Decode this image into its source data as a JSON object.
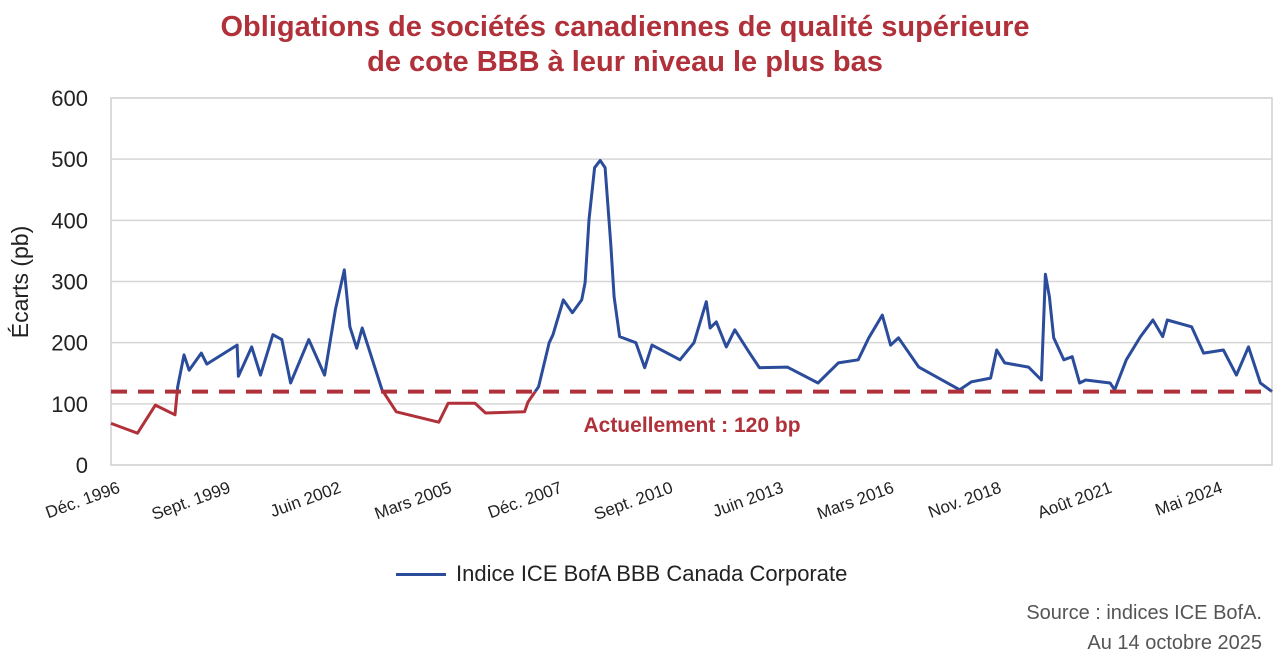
{
  "chart_data": {
    "type": "line",
    "title": "Obligations de sociétés canadiennes de qualité supérieure de cote BBB à leur niveau le plus bas",
    "title_lines": [
      "Obligations de sociétés canadiennes de qualité supérieure",
      "de cote BBB à leur niveau le plus bas"
    ],
    "ylabel": "Écarts (pb)",
    "xlabel": "",
    "ylim": [
      0,
      600
    ],
    "yticks": [
      0,
      100,
      200,
      300,
      400,
      500,
      600
    ],
    "xlim": [
      "1996-12-01",
      "2025-10-14"
    ],
    "xticks": [
      {
        "date": "1996-12-01",
        "label": "Déc. 1996"
      },
      {
        "date": "1999-09-01",
        "label": "Sept. 1999"
      },
      {
        "date": "2002-06-01",
        "label": "Juin 2002"
      },
      {
        "date": "2005-03-01",
        "label": "Mars 2005"
      },
      {
        "date": "2007-12-01",
        "label": "Déc. 2007"
      },
      {
        "date": "2010-09-01",
        "label": "Sept. 2010"
      },
      {
        "date": "2013-06-01",
        "label": "Juin 2013"
      },
      {
        "date": "2016-03-01",
        "label": "Mars 2016"
      },
      {
        "date": "2018-11-01",
        "label": "Nov. 2018"
      },
      {
        "date": "2021-08-01",
        "label": "Août 2021"
      },
      {
        "date": "2024-05-01",
        "label": "Mai 2024"
      }
    ],
    "grid": true,
    "legend_placement": "bottom",
    "series": [
      {
        "name": "Indice ICE BofA BBB Canada Corporate",
        "color": "#2b4c9b",
        "below_reference_color": "#b0313a",
        "points": [
          [
            "1996-12-01",
            68
          ],
          [
            "1997-07-30",
            52
          ],
          [
            "1998-01-08",
            98
          ],
          [
            "1998-07-05",
            82
          ],
          [
            "1998-07-30",
            128
          ],
          [
            "1998-09-25",
            180
          ],
          [
            "1998-11-10",
            155
          ],
          [
            "1999-03-01",
            183
          ],
          [
            "1999-04-20",
            165
          ],
          [
            "2000-01-20",
            196
          ],
          [
            "2000-02-01",
            145
          ],
          [
            "2000-06-01",
            193
          ],
          [
            "2000-08-20",
            147
          ],
          [
            "2000-12-10",
            213
          ],
          [
            "2001-03-01",
            205
          ],
          [
            "2001-05-20",
            134
          ],
          [
            "2001-11-01",
            205
          ],
          [
            "2002-03-25",
            147
          ],
          [
            "2002-07-01",
            254
          ],
          [
            "2002-09-20",
            319
          ],
          [
            "2002-11-10",
            226
          ],
          [
            "2003-01-10",
            191
          ],
          [
            "2003-03-01",
            224
          ],
          [
            "2003-08-28",
            123
          ],
          [
            "2004-01-05",
            87
          ],
          [
            "2005-01-25",
            70
          ],
          [
            "2005-04-20",
            101
          ],
          [
            "2005-12-20",
            101
          ],
          [
            "2006-03-25",
            85
          ],
          [
            "2007-03-15",
            87
          ],
          [
            "2007-04-15",
            103
          ],
          [
            "2007-07-20",
            128
          ],
          [
            "2007-10-25",
            200
          ],
          [
            "2007-11-28",
            213
          ],
          [
            "2008-03-01",
            270
          ],
          [
            "2008-05-22",
            249
          ],
          [
            "2008-08-15",
            270
          ],
          [
            "2008-09-15",
            298
          ],
          [
            "2008-10-20",
            401
          ],
          [
            "2008-12-10",
            486
          ],
          [
            "2009-01-30",
            498
          ],
          [
            "2009-03-15",
            486
          ],
          [
            "2009-05-05",
            363
          ],
          [
            "2009-06-05",
            275
          ],
          [
            "2009-07-25",
            210
          ],
          [
            "2009-12-20",
            200
          ],
          [
            "2010-03-10",
            159
          ],
          [
            "2010-05-15",
            196
          ],
          [
            "2011-01-25",
            172
          ],
          [
            "2011-06-01",
            200
          ],
          [
            "2011-09-20",
            267
          ],
          [
            "2011-10-25",
            224
          ],
          [
            "2011-12-20",
            234
          ],
          [
            "2012-03-20",
            193
          ],
          [
            "2012-06-05",
            221
          ],
          [
            "2012-10-10",
            185
          ],
          [
            "2013-01-15",
            159
          ],
          [
            "2013-09-25",
            160
          ],
          [
            "2014-07-01",
            134
          ],
          [
            "2015-01-01",
            167
          ],
          [
            "2015-07-01",
            172
          ],
          [
            "2015-10-05",
            208
          ],
          [
            "2016-02-05",
            245
          ],
          [
            "2016-04-20",
            196
          ],
          [
            "2016-07-01",
            208
          ],
          [
            "2017-01-01",
            160
          ],
          [
            "2017-06-01",
            145
          ],
          [
            "2018-01-08",
            123
          ],
          [
            "2018-04-25",
            136
          ],
          [
            "2018-10-15",
            142
          ],
          [
            "2018-12-10",
            188
          ],
          [
            "2019-02-20",
            167
          ],
          [
            "2019-09-25",
            160
          ],
          [
            "2020-01-20",
            139
          ],
          [
            "2020-02-25",
            312
          ],
          [
            "2020-04-01",
            275
          ],
          [
            "2020-05-10",
            208
          ],
          [
            "2020-08-10",
            172
          ],
          [
            "2020-10-25",
            177
          ],
          [
            "2021-01-01",
            134
          ],
          [
            "2021-02-25",
            139
          ],
          [
            "2021-10-05",
            134
          ],
          [
            "2021-11-15",
            123
          ],
          [
            "2022-03-01",
            172
          ],
          [
            "2022-07-08",
            210
          ],
          [
            "2022-10-28",
            237
          ],
          [
            "2023-01-25",
            210
          ],
          [
            "2023-03-08",
            237
          ],
          [
            "2023-10-15",
            226
          ],
          [
            "2024-02-01",
            183
          ],
          [
            "2024-07-30",
            188
          ],
          [
            "2024-11-25",
            147
          ],
          [
            "2025-03-15",
            193
          ],
          [
            "2025-07-01",
            134
          ],
          [
            "2025-10-14",
            120
          ]
        ]
      }
    ],
    "reference_line": {
      "value": 120,
      "style": "dashed",
      "color": "#b0313a",
      "label": "Actuellement : 120 bp"
    }
  },
  "footer": {
    "source": "Source : indices ICE BofA.",
    "date": "Au 14 octobre 2025"
  }
}
